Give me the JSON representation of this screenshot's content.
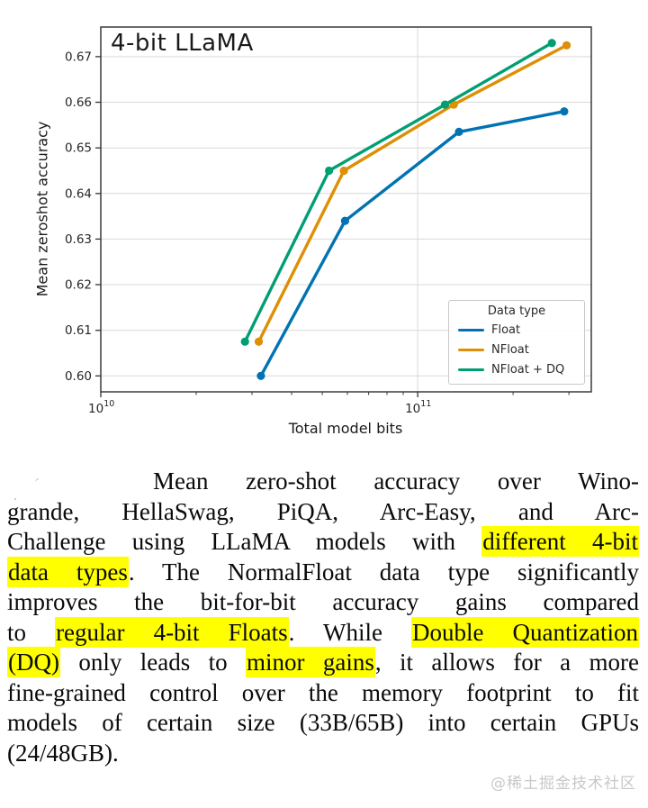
{
  "chart_data": {
    "type": "line",
    "title": "4-bit LLaMA",
    "xlabel": "Total model bits",
    "ylabel": "Mean zeroshot accuracy",
    "x_scale": "log",
    "xlim": [
      10000000000.0,
      353000000000.0
    ],
    "ylim": [
      0.5965,
      0.6765
    ],
    "grid": true,
    "yticks": [
      0.6,
      0.61,
      0.62,
      0.63,
      0.64,
      0.65,
      0.66,
      0.67
    ],
    "xticks": [
      {
        "value": 10000000000.0,
        "base": "10",
        "exp": "10"
      },
      {
        "value": 100000000000.0,
        "base": "10",
        "exp": "11"
      }
    ],
    "minor_xticks": [
      20000000000.0,
      30000000000.0,
      40000000000.0,
      50000000000.0,
      60000000000.0,
      70000000000.0,
      80000000000.0,
      90000000000.0,
      200000000000.0,
      300000000000.0
    ],
    "legend": {
      "title": "Data type",
      "position": "center right"
    },
    "series": [
      {
        "name": "Float",
        "color": "#0173b2",
        "points": [
          [
            32000000000.0,
            0.6
          ],
          [
            59000000000.0,
            0.634
          ],
          [
            135000000000.0,
            0.6535
          ],
          [
            290000000000.0,
            0.658
          ]
        ]
      },
      {
        "name": "NFloat",
        "color": "#de8f05",
        "points": [
          [
            31500000000.0,
            0.6075
          ],
          [
            58500000000.0,
            0.645
          ],
          [
            130000000000.0,
            0.6595
          ],
          [
            295000000000.0,
            0.6725
          ]
        ]
      },
      {
        "name": "NFloat + DQ",
        "color": "#029e73",
        "points": [
          [
            28500000000.0,
            0.6075
          ],
          [
            52500000000.0,
            0.645
          ],
          [
            122000000000.0,
            0.6595
          ],
          [
            265000000000.0,
            0.673
          ]
        ]
      }
    ]
  },
  "caption": {
    "highlight_color": "#ffff00",
    "artifacts": [
      "·",
      "ˊ",
      "-",
      ":"
    ],
    "lines": [
      {
        "justify": true,
        "indent": true,
        "segments": [
          {
            "t": "Mean zero-shot accuracy over Wino-",
            "hl": false
          }
        ]
      },
      {
        "justify": true,
        "segments": [
          {
            "t": "grande, HellaSwag, PiQA, Arc-Easy, and Arc-",
            "hl": false
          }
        ]
      },
      {
        "justify": true,
        "segments": [
          {
            "t": "Challenge using LLaMA models with ",
            "hl": false
          },
          {
            "t": "different 4-bit",
            "hl": true
          }
        ]
      },
      {
        "justify": true,
        "segments": [
          {
            "t": "data types",
            "hl": true
          },
          {
            "t": ". The NormalFloat data type significantly",
            "hl": false
          }
        ]
      },
      {
        "justify": true,
        "segments": [
          {
            "t": "improves the bit-for-bit accuracy gains compared",
            "hl": false
          }
        ]
      },
      {
        "justify": true,
        "segments": [
          {
            "t": "to ",
            "hl": false
          },
          {
            "t": "regular 4-bit Floats",
            "hl": true
          },
          {
            "t": ". While ",
            "hl": false
          },
          {
            "t": "Double Quantization",
            "hl": true
          }
        ]
      },
      {
        "justify": true,
        "segments": [
          {
            "t": "(DQ)",
            "hl": true
          },
          {
            "t": " only leads to ",
            "hl": false
          },
          {
            "t": "minor gains",
            "hl": true
          },
          {
            "t": ", it allows for a more",
            "hl": false
          }
        ]
      },
      {
        "justify": true,
        "segments": [
          {
            "t": "fine-grained control over the memory footprint to fit",
            "hl": false
          }
        ]
      },
      {
        "justify": true,
        "segments": [
          {
            "t": "models of certain size (33B/65B) into certain GPUs",
            "hl": false
          }
        ]
      },
      {
        "justify": false,
        "segments": [
          {
            "t": "(24/48GB).",
            "hl": false
          }
        ]
      }
    ]
  },
  "watermark": "@稀土掘金技术社区"
}
